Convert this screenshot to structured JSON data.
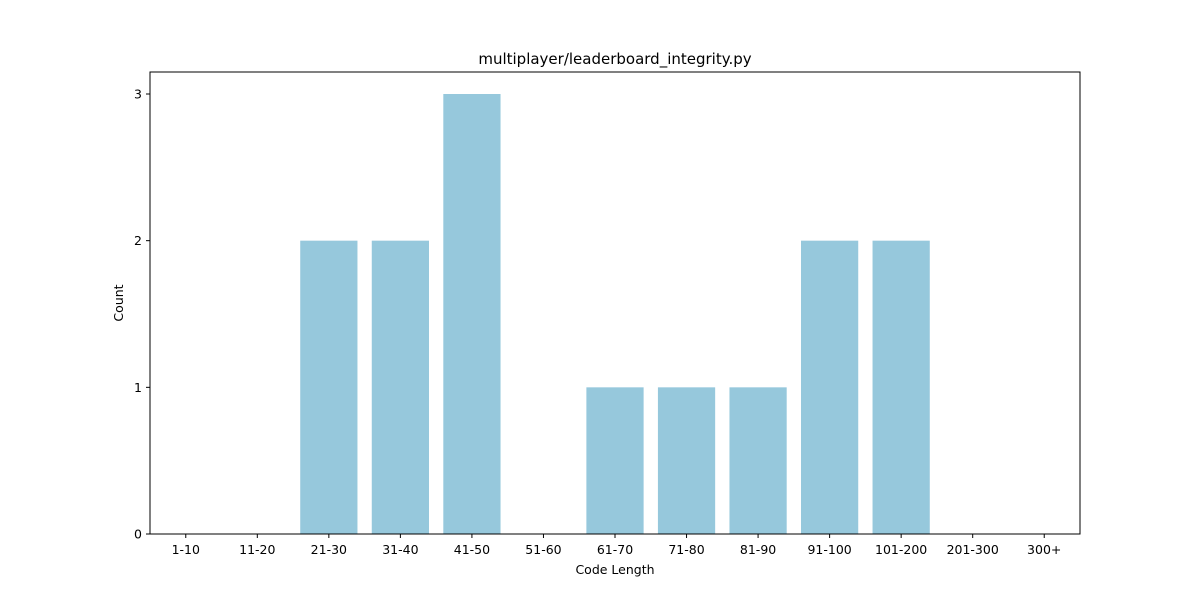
{
  "chart_data": {
    "type": "bar",
    "title": "multiplayer/leaderboard_integrity.py",
    "xlabel": "Code Length",
    "ylabel": "Count",
    "categories": [
      "1-10",
      "11-20",
      "21-30",
      "31-40",
      "41-50",
      "51-60",
      "61-70",
      "71-80",
      "81-90",
      "91-100",
      "101-200",
      "201-300",
      "300+"
    ],
    "values": [
      0,
      0,
      2,
      2,
      3,
      0,
      1,
      1,
      1,
      2,
      2,
      0,
      0
    ],
    "ylim": [
      0,
      3.15
    ],
    "yticks": [
      0,
      1,
      2,
      3
    ],
    "bar_color": "#96c8dc",
    "grid": false,
    "legend": "none"
  }
}
